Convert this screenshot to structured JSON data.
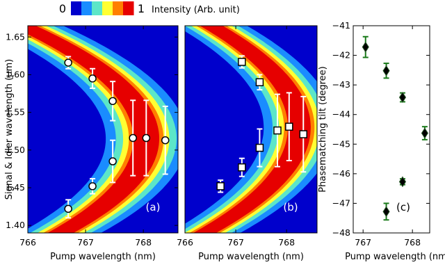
{
  "colorbar": {
    "min_label": "0",
    "max_label": "1",
    "label": "Intensity (Arb. unit)",
    "colors": [
      "#0000cc",
      "#1a8cff",
      "#5ce6c8",
      "#ffff33",
      "#ff7f00",
      "#e60000"
    ]
  },
  "chart_data": [
    {
      "id": "a",
      "type": "heatmap",
      "panel_label": "(a)",
      "xlabel": "Pump wavelength (nm)",
      "ylabel": "Signal & Idler wavelength (μm)",
      "xlim": [
        766,
        768.6
      ],
      "ylim": [
        1.39,
        1.665
      ],
      "xticks": [
        "766",
        "767",
        "768"
      ],
      "yticks": [
        "1.40",
        "1.45",
        "1.50",
        "1.55",
        "1.60",
        "1.65"
      ],
      "background_color": "#0000cc",
      "band": {
        "description": "phase-matching curve: pump = vertex - k*(signal - center)^2",
        "vertex": 768.05,
        "center": 1.515,
        "k": 95,
        "widths": [
          1.4,
          1.05,
          0.8,
          0.6,
          0.45,
          0.3
        ],
        "colors": [
          "#1a8cff",
          "#5ce6c8",
          "#ffff33",
          "#ff7f00",
          "#e60000",
          "#e60000"
        ]
      },
      "marker": "circle",
      "points": [
        {
          "x": 766.7,
          "y": 1.616,
          "err": 0.008
        },
        {
          "x": 767.12,
          "y": 1.595,
          "err": 0.013
        },
        {
          "x": 767.47,
          "y": 1.565,
          "err": 0.026
        },
        {
          "x": 767.82,
          "y": 1.516,
          "err": 0.05
        },
        {
          "x": 768.05,
          "y": 1.516,
          "err": 0.05
        },
        {
          "x": 768.38,
          "y": 1.513,
          "err": 0.045
        },
        {
          "x": 767.47,
          "y": 1.485,
          "err": 0.028
        },
        {
          "x": 767.12,
          "y": 1.452,
          "err": 0.01
        },
        {
          "x": 766.7,
          "y": 1.422,
          "err": 0.012
        }
      ]
    },
    {
      "id": "b",
      "type": "heatmap",
      "panel_label": "(b)",
      "xlabel": "Pump wavelength (nm)",
      "ylabel": "",
      "xlim": [
        766,
        768.6
      ],
      "ylim": [
        1.39,
        1.665
      ],
      "xticks": [
        "766",
        "767",
        "768"
      ],
      "yticks": [],
      "background_color": "#0000cc",
      "band": {
        "description": "phase-matching curve: pump = vertex - k*(signal - center)^2",
        "vertex": 768.25,
        "center": 1.53,
        "k": 95,
        "widths": [
          1.4,
          1.05,
          0.8,
          0.6,
          0.45,
          0.3
        ],
        "colors": [
          "#1a8cff",
          "#5ce6c8",
          "#ffff33",
          "#ff7f00",
          "#e60000",
          "#e60000"
        ]
      },
      "marker": "square",
      "points": [
        {
          "x": 767.12,
          "y": 1.617,
          "err": 0.008
        },
        {
          "x": 767.47,
          "y": 1.59,
          "err": 0.01
        },
        {
          "x": 767.82,
          "y": 1.526,
          "err": 0.048
        },
        {
          "x": 768.05,
          "y": 1.531,
          "err": 0.045
        },
        {
          "x": 768.33,
          "y": 1.521,
          "err": 0.05
        },
        {
          "x": 767.47,
          "y": 1.503,
          "err": 0.025
        },
        {
          "x": 767.12,
          "y": 1.477,
          "err": 0.012
        },
        {
          "x": 766.7,
          "y": 1.452,
          "err": 0.008
        }
      ]
    },
    {
      "id": "c",
      "type": "scatter",
      "panel_label": "(c)",
      "xlabel": "Pump wavelength (nm)",
      "ylabel": "Phasematching tilt (degree)",
      "xlim": [
        766.8,
        768.35
      ],
      "ylim": [
        -48,
        -41
      ],
      "xticks": [
        "767",
        "768"
      ],
      "yticks": [
        "−41",
        "−42",
        "−43",
        "−44",
        "−45",
        "−46",
        "−47",
        "−48"
      ],
      "marker": "diamond",
      "marker_color": "#000000",
      "error_color": "#1a7a1a",
      "points": [
        {
          "x": 767.05,
          "y": -41.72,
          "err": 0.35
        },
        {
          "x": 767.47,
          "y": -42.52,
          "err": 0.25
        },
        {
          "x": 767.8,
          "y": -43.42,
          "err": 0.15
        },
        {
          "x": 768.25,
          "y": -44.63,
          "err": 0.22
        },
        {
          "x": 767.8,
          "y": -46.27,
          "err": 0.1
        },
        {
          "x": 767.47,
          "y": -47.28,
          "err": 0.28
        }
      ]
    }
  ]
}
